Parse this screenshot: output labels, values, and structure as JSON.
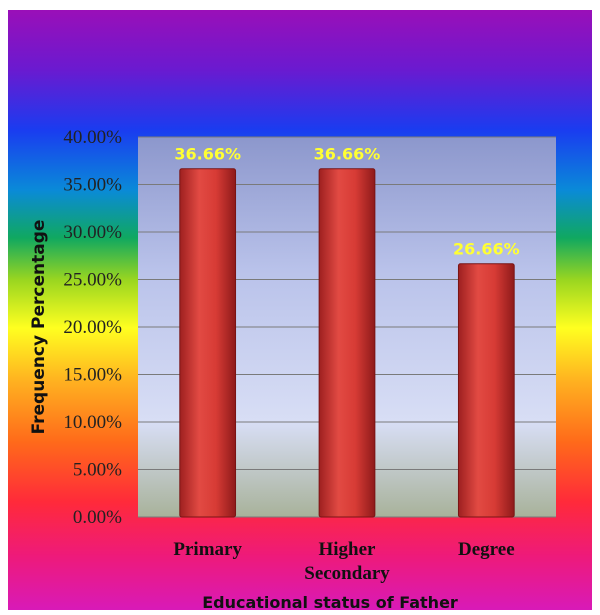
{
  "chart_data": {
    "type": "bar",
    "categories": [
      "Primary",
      "Higher Secondary",
      "Degree"
    ],
    "category_lines": [
      [
        "Primary"
      ],
      [
        "Higher",
        "Secondary"
      ],
      [
        "Degree"
      ]
    ],
    "values": [
      36.66,
      36.66,
      26.66
    ],
    "data_labels": [
      "36.66%",
      "36.66%",
      "26.66%"
    ],
    "ylabel": "Frequency Percentage",
    "xlabel": "Educational status of Father",
    "ylim": [
      0,
      40
    ],
    "yticks": [
      0,
      5,
      10,
      15,
      20,
      25,
      30,
      35,
      40
    ],
    "ytick_labels": [
      "0.00%",
      "5.00%",
      "10.00%",
      "15.00%",
      "20.00%",
      "25.00%",
      "30.00%",
      "35.00%",
      "40.00%"
    ],
    "grid": true,
    "legend": "none",
    "colors": {
      "bar": "#c8302e",
      "bar_light": "#e24a43",
      "data_label": "#ffff33",
      "gridline": "#7a7a7a"
    }
  }
}
